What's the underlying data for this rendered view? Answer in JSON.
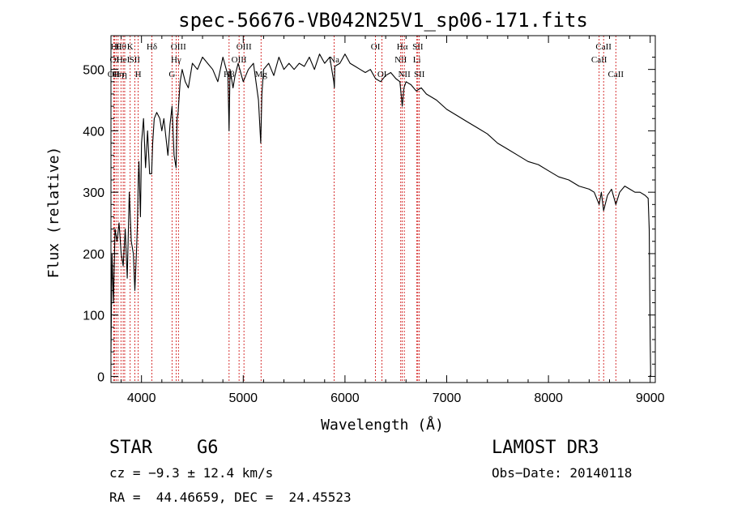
{
  "chart_data": {
    "type": "line",
    "title": "spec-56676-VB042N25V1_sp06-171.fits",
    "xlabel": "Wavelength (Å)",
    "ylabel": "Flux (relative)",
    "xlim": [
      3700,
      9050
    ],
    "ylim": [
      -10,
      555
    ],
    "xticks": [
      4000,
      5000,
      6000,
      7000,
      8000,
      9000
    ],
    "yticks": [
      0,
      100,
      200,
      300,
      400,
      500
    ],
    "grid": false,
    "series": [
      {
        "name": "spectrum",
        "x": [
          3700,
          3710,
          3725,
          3740,
          3760,
          3780,
          3800,
          3820,
          3840,
          3860,
          3880,
          3900,
          3920,
          3935,
          3950,
          3960,
          3968,
          3975,
          3990,
          4000,
          4020,
          4040,
          4060,
          4080,
          4100,
          4110,
          4125,
          4150,
          4180,
          4200,
          4220,
          4240,
          4260,
          4280,
          4300,
          4320,
          4340,
          4350,
          4360,
          4380,
          4400,
          4430,
          4460,
          4500,
          4550,
          4600,
          4650,
          4700,
          4750,
          4800,
          4850,
          4861,
          4870,
          4900,
          4920,
          4950,
          5000,
          5050,
          5100,
          5150,
          5172,
          5183,
          5200,
          5250,
          5300,
          5350,
          5400,
          5450,
          5500,
          5550,
          5600,
          5650,
          5700,
          5750,
          5800,
          5850,
          5890,
          5896,
          5900,
          5950,
          6000,
          6050,
          6100,
          6150,
          6200,
          6250,
          6300,
          6350,
          6400,
          6450,
          6500,
          6540,
          6563,
          6580,
          6600,
          6650,
          6700,
          6750,
          6800,
          6900,
          7000,
          7100,
          7200,
          7300,
          7400,
          7500,
          7600,
          7700,
          7800,
          7900,
          8000,
          8100,
          8200,
          8300,
          8400,
          8450,
          8498,
          8520,
          8542,
          8580,
          8620,
          8662,
          8700,
          8750,
          8800,
          8850,
          8900,
          8950,
          8980,
          8990,
          9000,
          9005
        ],
        "values": [
          40,
          200,
          120,
          240,
          220,
          250,
          200,
          180,
          240,
          160,
          300,
          220,
          200,
          140,
          200,
          250,
          320,
          350,
          260,
          380,
          420,
          340,
          400,
          330,
          330,
          380,
          420,
          430,
          420,
          400,
          420,
          390,
          360,
          410,
          440,
          360,
          340,
          420,
          430,
          480,
          500,
          480,
          470,
          510,
          500,
          520,
          510,
          500,
          480,
          520,
          490,
          400,
          500,
          470,
          490,
          510,
          480,
          500,
          510,
          450,
          380,
          460,
          500,
          510,
          490,
          520,
          500,
          510,
          500,
          510,
          505,
          520,
          500,
          525,
          510,
          520,
          480,
          470,
          505,
          510,
          525,
          510,
          505,
          500,
          495,
          500,
          485,
          480,
          490,
          495,
          485,
          480,
          440,
          470,
          480,
          475,
          465,
          470,
          460,
          450,
          435,
          425,
          415,
          405,
          395,
          380,
          370,
          360,
          350,
          345,
          335,
          325,
          320,
          310,
          305,
          300,
          280,
          300,
          270,
          295,
          305,
          280,
          300,
          310,
          305,
          300,
          300,
          295,
          290,
          240,
          60,
          0
        ]
      }
    ],
    "line_markers": [
      {
        "x": 3727,
        "label": "OII",
        "row": 3
      },
      {
        "x": 3734,
        "label": "OI",
        "row": 2
      },
      {
        "x": 3750,
        "label": "Hθ",
        "row": 1
      },
      {
        "x": 3770,
        "label": "Hη",
        "row": 3
      },
      {
        "x": 3798,
        "label": "Hθ",
        "row": 1
      },
      {
        "x": 3820,
        "label": "HeI",
        "row": 2
      },
      {
        "x": 3835,
        "label": "η",
        "row": 3
      },
      {
        "x": 3889,
        "label": "K",
        "row": 1
      },
      {
        "x": 3934,
        "label": "SII",
        "row": 2
      },
      {
        "x": 3968,
        "label": "H",
        "row": 3
      },
      {
        "x": 4102,
        "label": "Hδ",
        "row": 1
      },
      {
        "x": 4300,
        "label": "G",
        "row": 3
      },
      {
        "x": 4340,
        "label": "Hγ",
        "row": 2
      },
      {
        "x": 4363,
        "label": "OIII",
        "row": 1
      },
      {
        "x": 4861,
        "label": "Hβ",
        "row": 3
      },
      {
        "x": 4959,
        "label": "OIII",
        "row": 2
      },
      {
        "x": 5007,
        "label": "OIII",
        "row": 1
      },
      {
        "x": 5175,
        "label": "Mg",
        "row": 3
      },
      {
        "x": 5894,
        "label": "Na",
        "row": 2
      },
      {
        "x": 6300,
        "label": "OI",
        "row": 1
      },
      {
        "x": 6364,
        "label": "OI",
        "row": 3
      },
      {
        "x": 6548,
        "label": "NII",
        "row": 2
      },
      {
        "x": 6563,
        "label": "Hα",
        "row": 1
      },
      {
        "x": 6583,
        "label": "NII",
        "row": 3
      },
      {
        "x": 6707,
        "label": "Li",
        "row": 2
      },
      {
        "x": 6716,
        "label": "SII",
        "row": 1
      },
      {
        "x": 6731,
        "label": "SII",
        "row": 3
      },
      {
        "x": 8498,
        "label": "CaII",
        "row": 2
      },
      {
        "x": 8542,
        "label": "CaII",
        "row": 1
      },
      {
        "x": 8662,
        "label": "CaII",
        "row": 3
      }
    ]
  },
  "info": {
    "class_label": "STAR",
    "subclass": "G6",
    "cz": "cz = −9.3 ± 12.4 km/s",
    "coords": "RA =  44.46659, DEC =  24.45523",
    "survey": "LAMOST DR3",
    "obs_date": "Obs−Date: 20140118"
  },
  "colors": {
    "axis": "#000000",
    "spectrum": "#000000",
    "marker": "#cc0000"
  }
}
